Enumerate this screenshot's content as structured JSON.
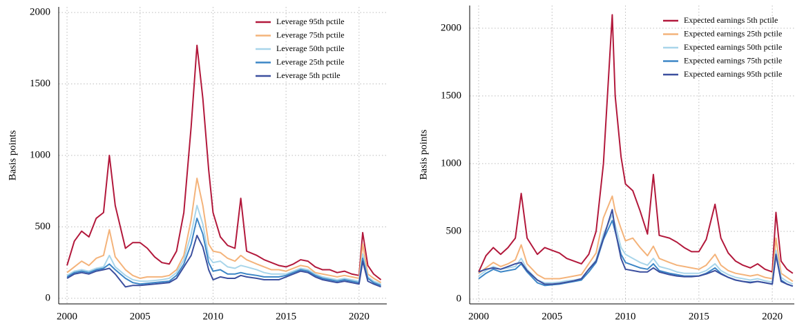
{
  "chart_data": [
    {
      "type": "line",
      "y_label": "Basis points",
      "grid": true,
      "legend": "upper right",
      "xlim": [
        1999.43,
        2021.9
      ],
      "ylim": [
        -39,
        2039
      ],
      "xticks": [
        2000,
        2005,
        2010,
        2015,
        2020
      ],
      "yticks": [
        0,
        500,
        1000,
        1500,
        2000
      ],
      "x": [
        2000,
        2000.5,
        2001,
        2001.5,
        2002,
        2002.5,
        2002.9,
        2003.3,
        2004,
        2004.5,
        2005,
        2005.5,
        2006,
        2006.5,
        2007,
        2007.5,
        2008,
        2008.5,
        2008.9,
        2009.3,
        2009.7,
        2010,
        2010.5,
        2011,
        2011.5,
        2011.9,
        2012.3,
        2013,
        2013.5,
        2014,
        2014.5,
        2015,
        2015.5,
        2016,
        2016.5,
        2017,
        2017.5,
        2018,
        2018.5,
        2019,
        2019.5,
        2020,
        2020.25,
        2020.6,
        2021,
        2021.5
      ],
      "series": [
        {
          "name": "Leverage 95th pctile",
          "color": "#b2183b",
          "values": [
            230,
            400,
            470,
            430,
            560,
            600,
            1000,
            650,
            350,
            390,
            390,
            350,
            290,
            250,
            240,
            330,
            600,
            1200,
            1770,
            1400,
            900,
            600,
            430,
            370,
            350,
            700,
            330,
            300,
            270,
            250,
            230,
            220,
            240,
            270,
            260,
            220,
            200,
            200,
            180,
            190,
            170,
            160,
            460,
            230,
            170,
            130
          ]
        },
        {
          "name": "Leverage 75th pctile",
          "color": "#f4b37a",
          "values": [
            180,
            220,
            260,
            230,
            280,
            300,
            480,
            290,
            200,
            160,
            140,
            150,
            150,
            150,
            160,
            200,
            300,
            550,
            840,
            650,
            380,
            330,
            320,
            280,
            260,
            300,
            270,
            240,
            220,
            200,
            200,
            190,
            210,
            230,
            220,
            180,
            170,
            160,
            150,
            160,
            150,
            140,
            380,
            170,
            140,
            110
          ]
        },
        {
          "name": "Leverage 50th pctile",
          "color": "#a8d5ea",
          "values": [
            160,
            190,
            200,
            190,
            210,
            220,
            300,
            220,
            160,
            130,
            120,
            120,
            125,
            130,
            140,
            180,
            270,
            450,
            650,
            520,
            290,
            250,
            260,
            220,
            210,
            230,
            220,
            200,
            180,
            170,
            170,
            170,
            190,
            210,
            200,
            170,
            150,
            140,
            130,
            140,
            130,
            120,
            310,
            150,
            120,
            100
          ]
        },
        {
          "name": "Leverage 25th pctile",
          "color": "#3c86c6",
          "values": [
            150,
            180,
            190,
            180,
            200,
            210,
            240,
            200,
            140,
            110,
            100,
            105,
            110,
            115,
            120,
            160,
            240,
            380,
            560,
            450,
            250,
            190,
            200,
            170,
            170,
            180,
            170,
            160,
            150,
            150,
            150,
            160,
            180,
            200,
            190,
            160,
            140,
            130,
            120,
            130,
            120,
            110,
            280,
            140,
            110,
            90
          ]
        },
        {
          "name": "Leverage 5th pctile",
          "color": "#3b4f9e",
          "values": [
            140,
            170,
            180,
            170,
            190,
            200,
            210,
            170,
            80,
            90,
            90,
            95,
            100,
            105,
            110,
            140,
            220,
            300,
            440,
            360,
            200,
            130,
            150,
            140,
            140,
            160,
            150,
            140,
            130,
            130,
            130,
            150,
            170,
            190,
            180,
            150,
            130,
            120,
            110,
            120,
            110,
            100,
            260,
            120,
            100,
            80
          ]
        }
      ]
    },
    {
      "type": "line",
      "y_label": "Basis points",
      "grid": true,
      "legend": "upper right",
      "xlim": [
        1999.39,
        2021.5
      ],
      "ylim": [
        -36,
        2168
      ],
      "xticks": [
        2000,
        2005,
        2010,
        2015,
        2020
      ],
      "yticks": [
        0,
        500,
        1000,
        1500,
        2000
      ],
      "x": [
        2000,
        2000.5,
        2001,
        2001.5,
        2002,
        2002.5,
        2002.9,
        2003.3,
        2004,
        2004.5,
        2005,
        2005.5,
        2006,
        2006.5,
        2007,
        2007.5,
        2008,
        2008.5,
        2009.1,
        2009.3,
        2009.7,
        2010,
        2010.5,
        2011,
        2011.5,
        2011.9,
        2012.3,
        2013,
        2013.5,
        2014,
        2014.5,
        2015,
        2015.5,
        2016.1,
        2016.5,
        2017,
        2017.5,
        2018,
        2018.5,
        2019,
        2019.5,
        2020,
        2020.25,
        2020.6,
        2021,
        2021.4
      ],
      "series": [
        {
          "name": "Expected earnings 5th pctile",
          "color": "#b2183b",
          "values": [
            200,
            320,
            380,
            330,
            380,
            450,
            780,
            450,
            330,
            380,
            360,
            340,
            300,
            280,
            260,
            330,
            500,
            1000,
            2100,
            1500,
            1050,
            850,
            800,
            650,
            480,
            920,
            470,
            450,
            420,
            380,
            350,
            350,
            440,
            700,
            450,
            340,
            280,
            250,
            230,
            260,
            220,
            200,
            640,
            280,
            220,
            190
          ]
        },
        {
          "name": "Expected earnings 25th pctile",
          "color": "#f4b37a",
          "values": [
            190,
            230,
            270,
            240,
            260,
            290,
            400,
            260,
            180,
            150,
            150,
            150,
            160,
            170,
            180,
            260,
            340,
            600,
            760,
            650,
            520,
            430,
            450,
            380,
            320,
            390,
            300,
            270,
            250,
            240,
            230,
            220,
            250,
            330,
            250,
            210,
            190,
            180,
            170,
            180,
            160,
            150,
            450,
            190,
            160,
            130
          ]
        },
        {
          "name": "Expected earnings 50th pctile",
          "color": "#a8d5ea",
          "values": [
            170,
            210,
            240,
            220,
            230,
            240,
            300,
            220,
            140,
            120,
            120,
            125,
            135,
            140,
            150,
            220,
            290,
            480,
            620,
            550,
            380,
            330,
            300,
            270,
            250,
            300,
            240,
            220,
            200,
            190,
            190,
            190,
            210,
            260,
            210,
            180,
            160,
            150,
            140,
            150,
            135,
            125,
            360,
            160,
            130,
            110
          ]
        },
        {
          "name": "Expected earnings 75th pctile",
          "color": "#3c86c6",
          "values": [
            150,
            190,
            220,
            200,
            210,
            220,
            260,
            200,
            120,
            100,
            105,
            110,
            120,
            130,
            140,
            200,
            270,
            440,
            580,
            500,
            330,
            270,
            250,
            230,
            220,
            260,
            210,
            190,
            180,
            170,
            170,
            170,
            190,
            230,
            190,
            160,
            140,
            130,
            125,
            130,
            120,
            110,
            320,
            140,
            110,
            95
          ]
        },
        {
          "name": "Expected earnings 95th pctile",
          "color": "#3b4f9e",
          "values": [
            200,
            220,
            230,
            220,
            240,
            260,
            270,
            210,
            140,
            110,
            110,
            115,
            125,
            135,
            150,
            220,
            280,
            450,
            660,
            510,
            300,
            220,
            210,
            200,
            200,
            230,
            200,
            180,
            170,
            165,
            165,
            170,
            185,
            210,
            185,
            160,
            140,
            130,
            120,
            130,
            120,
            110,
            330,
            130,
            110,
            95
          ]
        }
      ]
    }
  ]
}
